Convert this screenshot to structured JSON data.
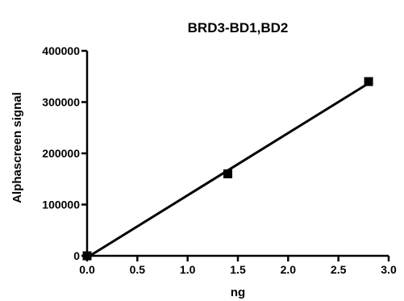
{
  "chart_data": {
    "type": "scatter",
    "title": "BRD3-BD1,BD2",
    "xlabel": "ng",
    "ylabel": "Alphascreen signal",
    "xlim": [
      0.0,
      3.0
    ],
    "ylim": [
      0,
      400000
    ],
    "x_ticks": [
      "0.0",
      "0.5",
      "1.0",
      "1.5",
      "2.0",
      "2.5",
      "3.0"
    ],
    "y_ticks": [
      "0",
      "100000",
      "200000",
      "300000",
      "400000"
    ],
    "grid": false,
    "legend": "none",
    "series": [
      {
        "x": [
          0.0,
          1.4,
          2.8
        ],
        "y": [
          0,
          160000,
          340000
        ],
        "marker": "square",
        "fit_line": true
      }
    ]
  }
}
